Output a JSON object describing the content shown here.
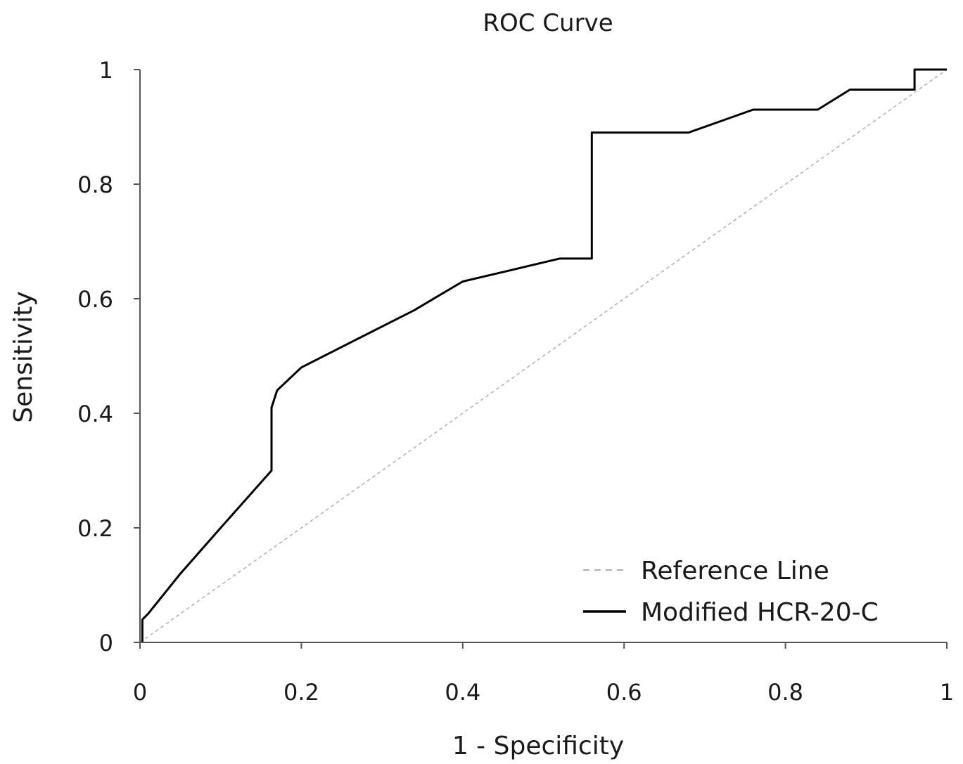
{
  "chart_data": {
    "type": "line",
    "title": "ROC Curve",
    "xlabel": "1 - Specificity",
    "ylabel": "Sensitivity",
    "xlim": [
      0,
      1
    ],
    "ylim": [
      0,
      1
    ],
    "x_ticks": [
      0,
      0.2,
      0.4,
      0.6,
      0.8,
      1
    ],
    "x_tick_labels": [
      "0",
      "0.2",
      "0.4",
      "0.6",
      "0.8",
      "1"
    ],
    "y_ticks": [
      0,
      0.2,
      0.4,
      0.6,
      0.8,
      1
    ],
    "y_tick_labels": [
      "0",
      "0.2",
      "0.4",
      "0.6",
      "0.8",
      "1"
    ],
    "grid": false,
    "legend_position": "bottom-right",
    "series": [
      {
        "name": "Reference Line",
        "style": "dashed",
        "color": "#b0b0b0",
        "x": [
          0,
          1
        ],
        "y": [
          0,
          1
        ]
      },
      {
        "name": "Modified HCR-20-C",
        "style": "solid",
        "color": "#000000",
        "x": [
          0.003,
          0.003,
          0.01,
          0.05,
          0.1,
          0.163,
          0.163,
          0.17,
          0.2,
          0.27,
          0.34,
          0.4,
          0.46,
          0.52,
          0.56,
          0.56,
          0.6,
          0.68,
          0.76,
          0.84,
          0.88,
          0.96,
          0.96,
          1.0
        ],
        "y": [
          0.0,
          0.04,
          0.05,
          0.12,
          0.2,
          0.3,
          0.41,
          0.44,
          0.48,
          0.53,
          0.58,
          0.63,
          0.65,
          0.67,
          0.67,
          0.89,
          0.89,
          0.89,
          0.93,
          0.93,
          0.965,
          0.965,
          1.0,
          1.0
        ]
      }
    ]
  }
}
